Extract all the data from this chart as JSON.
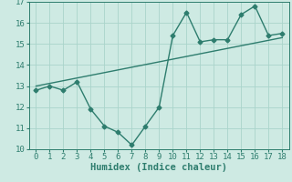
{
  "x_data": [
    0,
    1,
    2,
    3,
    4,
    5,
    6,
    7,
    8,
    9,
    10,
    11,
    12,
    13,
    14,
    15,
    16,
    17,
    18
  ],
  "y_data": [
    12.8,
    13.0,
    12.8,
    13.2,
    11.9,
    11.1,
    10.8,
    10.2,
    11.1,
    12.0,
    15.4,
    16.5,
    15.1,
    15.2,
    15.2,
    16.4,
    16.8,
    15.4,
    15.5
  ],
  "trend_x": [
    0,
    18
  ],
  "trend_y": [
    13.0,
    15.3
  ],
  "color": "#2e7d6e",
  "bg_color": "#ceeae3",
  "grid_color": "#aad4cb",
  "xlabel": "Humidex (Indice chaleur)",
  "xlim": [
    -0.5,
    18.5
  ],
  "ylim": [
    10,
    17
  ],
  "yticks": [
    10,
    11,
    12,
    13,
    14,
    15,
    16,
    17
  ],
  "xticks": [
    0,
    1,
    2,
    3,
    4,
    5,
    6,
    7,
    8,
    9,
    10,
    11,
    12,
    13,
    14,
    15,
    16,
    17,
    18
  ],
  "marker": "D",
  "marker_size": 2.5,
  "line_width": 1.0,
  "xlabel_fontsize": 7.5,
  "tick_fontsize": 6.5
}
